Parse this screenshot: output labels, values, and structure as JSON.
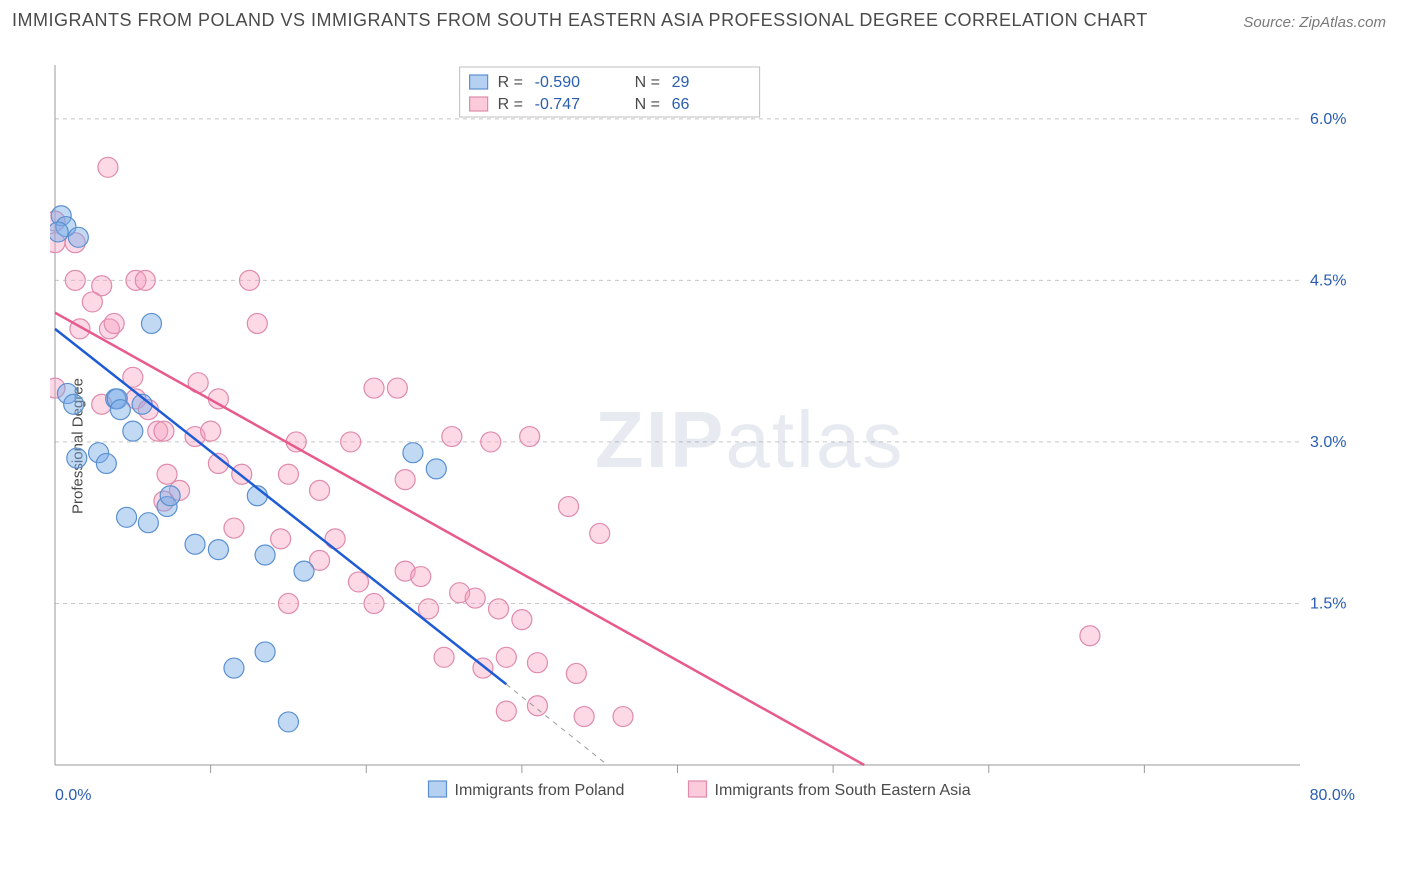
{
  "title": "IMMIGRANTS FROM POLAND VS IMMIGRANTS FROM SOUTH EASTERN ASIA PROFESSIONAL DEGREE CORRELATION CHART",
  "source_label": "Source:",
  "source_value": "ZipAtlas.com",
  "y_axis_label": "Professional Degree",
  "watermark_bold": "ZIP",
  "watermark_light": "atlas",
  "chart": {
    "type": "scatter",
    "xlim": [
      0,
      80
    ],
    "ylim": [
      0,
      6.5
    ],
    "x_axis_start_label": "0.0%",
    "x_axis_end_label": "80.0%",
    "x_ticks": [
      10,
      20,
      30,
      40,
      50,
      60,
      70
    ],
    "y_gridlines": [
      1.5,
      3.0,
      4.5,
      6.0
    ],
    "y_tick_labels": [
      "1.5%",
      "3.0%",
      "4.5%",
      "6.0%"
    ],
    "background_color": "#ffffff",
    "grid_color": "#c8c8c8",
    "axis_label_color": "#2a5db0",
    "marker_radius": 10,
    "series": [
      {
        "name": "Immigrants from Poland",
        "color_fill": "rgba(120,170,230,0.45)",
        "color_stroke": "#5a90d0",
        "trend_color": "#1e5bd6",
        "R": "-0.590",
        "N": "29",
        "trend": {
          "x1": 0,
          "y1": 4.05,
          "x2": 29,
          "y2": 0.75
        },
        "trend_dash_extend": {
          "x1": 29,
          "y1": 0.75,
          "x2": 35.5,
          "y2": 0
        },
        "points": [
          [
            0.4,
            5.1
          ],
          [
            0.7,
            5.0
          ],
          [
            0.2,
            4.95
          ],
          [
            1.5,
            4.9
          ],
          [
            0.8,
            3.45
          ],
          [
            1.2,
            3.35
          ],
          [
            3.9,
            3.4
          ],
          [
            4.0,
            3.4
          ],
          [
            6.2,
            4.1
          ],
          [
            2.8,
            2.9
          ],
          [
            4.2,
            3.3
          ],
          [
            5.6,
            3.35
          ],
          [
            1.4,
            2.85
          ],
          [
            3.3,
            2.8
          ],
          [
            5.0,
            3.1
          ],
          [
            4.6,
            2.3
          ],
          [
            6.0,
            2.25
          ],
          [
            7.2,
            2.4
          ],
          [
            7.4,
            2.5
          ],
          [
            9.0,
            2.05
          ],
          [
            10.5,
            2.0
          ],
          [
            13.5,
            1.95
          ],
          [
            13.0,
            2.5
          ],
          [
            16.0,
            1.8
          ],
          [
            13.5,
            1.05
          ],
          [
            11.5,
            0.9
          ],
          [
            15.0,
            0.4
          ],
          [
            23.0,
            2.9
          ],
          [
            24.5,
            2.75
          ]
        ]
      },
      {
        "name": "Immigrants from South Eastern Asia",
        "color_fill": "rgba(248,160,190,0.40)",
        "color_stroke": "#e08aac",
        "trend_color": "#e75a8b",
        "R": "-0.747",
        "N": "66",
        "trend": {
          "x1": 0,
          "y1": 4.2,
          "x2": 52,
          "y2": 0
        },
        "points": [
          [
            0.0,
            5.05
          ],
          [
            0.0,
            4.85
          ],
          [
            1.3,
            4.85
          ],
          [
            0.0,
            3.5
          ],
          [
            3.4,
            5.55
          ],
          [
            1.3,
            4.5
          ],
          [
            3.0,
            4.45
          ],
          [
            5.2,
            4.5
          ],
          [
            5.8,
            4.5
          ],
          [
            12.5,
            4.5
          ],
          [
            1.6,
            4.05
          ],
          [
            2.4,
            4.3
          ],
          [
            3.5,
            4.05
          ],
          [
            3.8,
            4.1
          ],
          [
            13.0,
            4.1
          ],
          [
            3.0,
            3.35
          ],
          [
            5.0,
            3.6
          ],
          [
            5.2,
            3.4
          ],
          [
            6.0,
            3.3
          ],
          [
            9.2,
            3.55
          ],
          [
            20.5,
            3.5
          ],
          [
            22.0,
            3.5
          ],
          [
            6.6,
            3.1
          ],
          [
            7.0,
            3.1
          ],
          [
            7.2,
            2.7
          ],
          [
            9.0,
            3.05
          ],
          [
            10.0,
            3.1
          ],
          [
            10.5,
            2.8
          ],
          [
            15.5,
            3.0
          ],
          [
            25.5,
            3.05
          ],
          [
            28.0,
            3.0
          ],
          [
            8.0,
            2.55
          ],
          [
            12.0,
            2.7
          ],
          [
            15.0,
            2.7
          ],
          [
            17.0,
            2.55
          ],
          [
            22.5,
            2.65
          ],
          [
            30.5,
            3.05
          ],
          [
            11.5,
            2.2
          ],
          [
            14.5,
            2.1
          ],
          [
            18.0,
            2.1
          ],
          [
            22.5,
            1.8
          ],
          [
            33.0,
            2.4
          ],
          [
            7.0,
            2.45
          ],
          [
            19.5,
            1.7
          ],
          [
            23.5,
            1.75
          ],
          [
            26.0,
            1.6
          ],
          [
            27.0,
            1.55
          ],
          [
            35.0,
            2.15
          ],
          [
            17.0,
            1.9
          ],
          [
            20.5,
            1.5
          ],
          [
            24.0,
            1.45
          ],
          [
            28.5,
            1.45
          ],
          [
            30.0,
            1.35
          ],
          [
            25.0,
            1.0
          ],
          [
            27.5,
            0.9
          ],
          [
            29.0,
            1.0
          ],
          [
            31.0,
            0.95
          ],
          [
            33.5,
            0.85
          ],
          [
            29.0,
            0.5
          ],
          [
            31.0,
            0.55
          ],
          [
            34.0,
            0.45
          ],
          [
            36.5,
            0.45
          ],
          [
            66.5,
            1.2
          ],
          [
            10.5,
            3.4
          ],
          [
            19.0,
            3.0
          ],
          [
            15.0,
            1.5
          ]
        ]
      }
    ],
    "legend_top": {
      "R_label": "R =",
      "N_label": "N ="
    },
    "legend_bottom": {
      "items": [
        "Immigrants from Poland",
        "Immigrants from South Eastern Asia"
      ]
    }
  }
}
